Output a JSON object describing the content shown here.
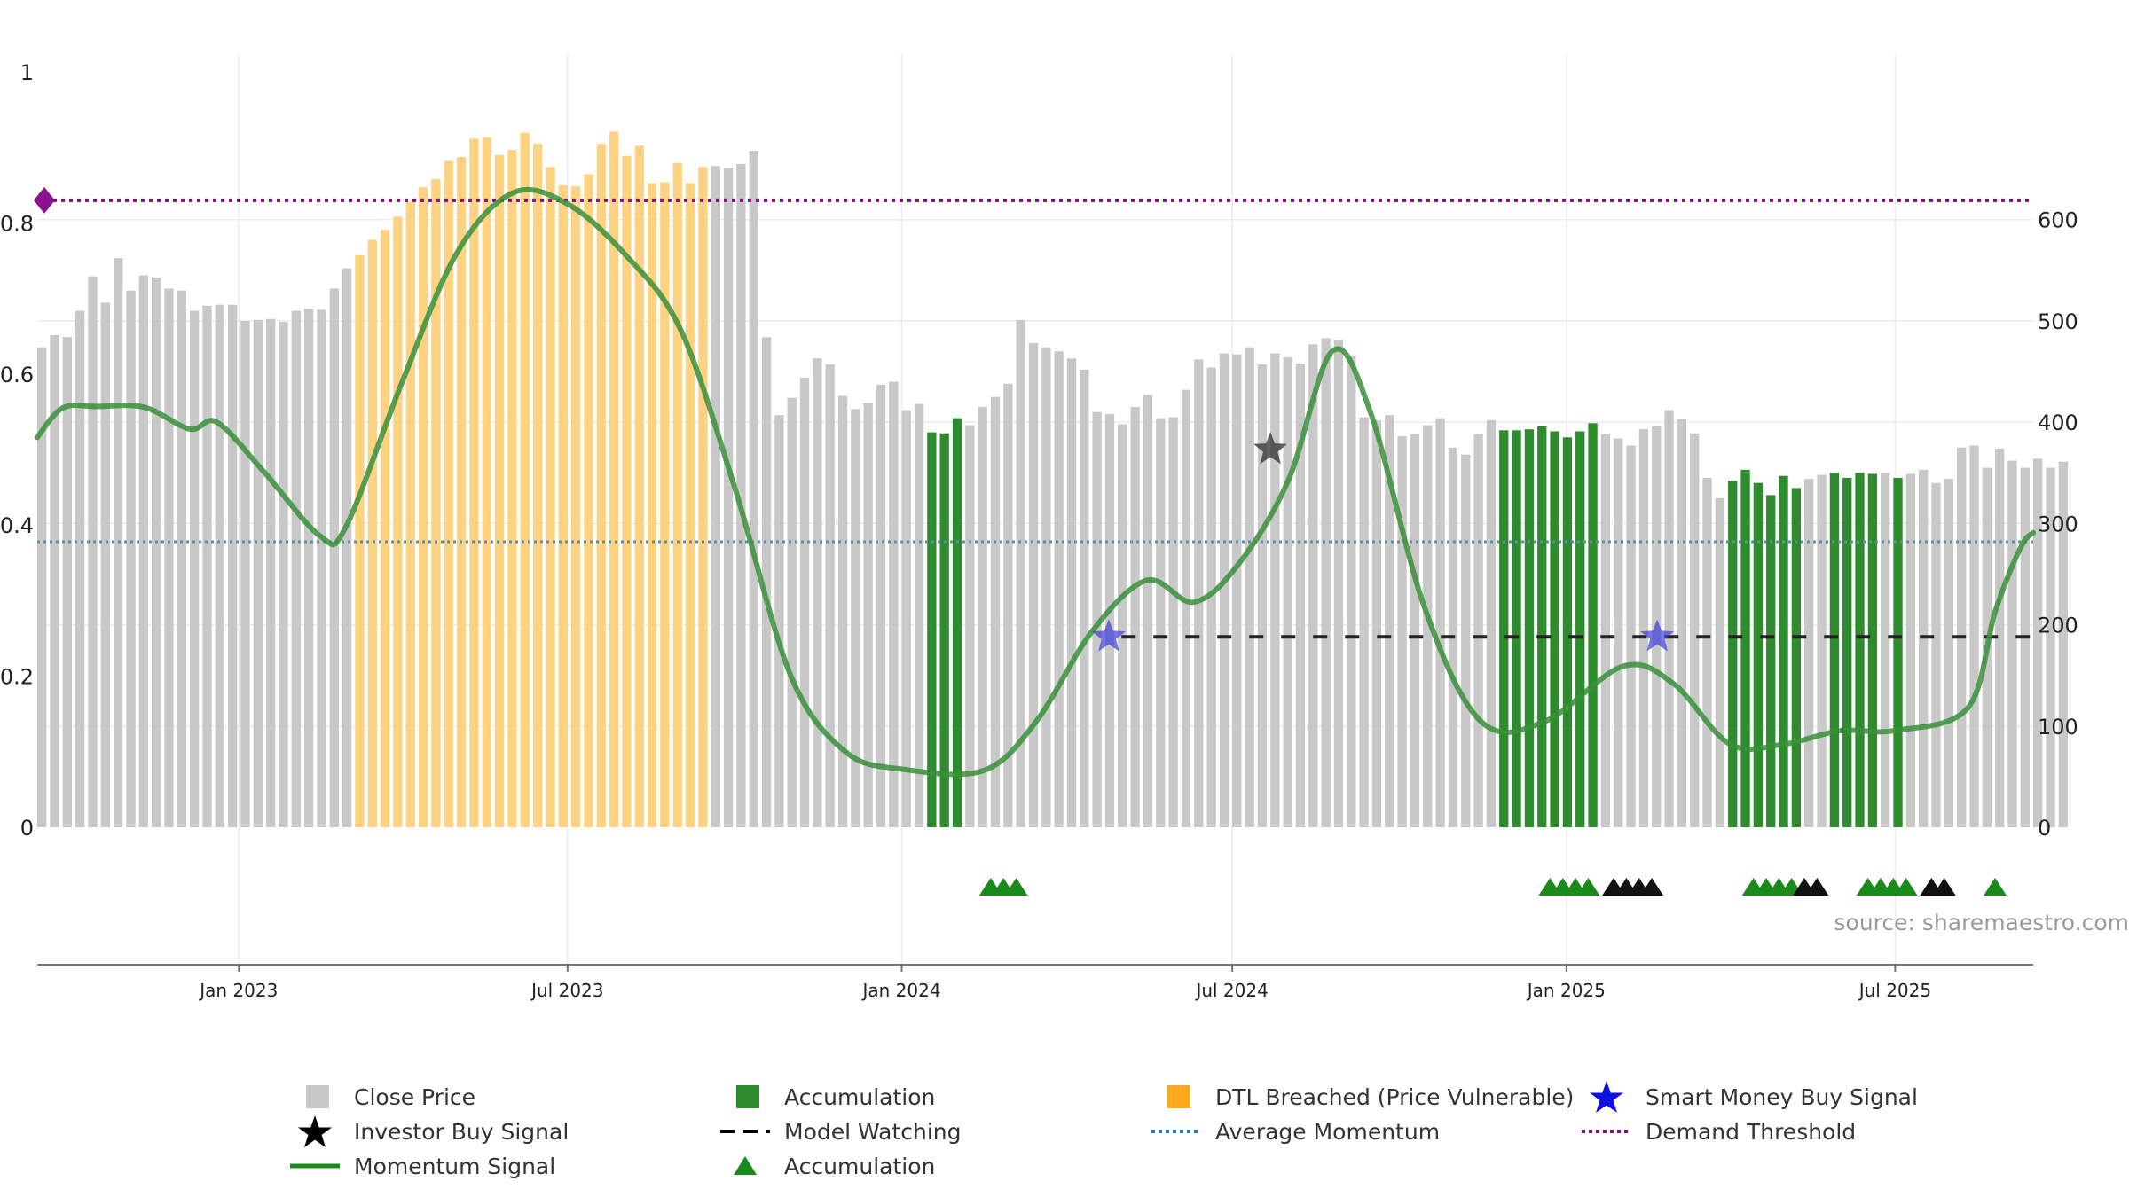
{
  "source_label": "source: sharemaestro.com",
  "colors": {
    "close_price": "#c8c8c8",
    "accumulation": "#2e8b2e",
    "dtl_breached": "#fdd283",
    "momentum": "#3a8f3a",
    "momentum_strong": "#1a8a1a",
    "average_momentum": "#5b8fa8",
    "demand_threshold": "#7b0f7b",
    "model_watching": "#222222",
    "smart_money": "#3a3ad8",
    "investor_buy": "#3a3a3a",
    "triangle_green": "#1a8a1a",
    "triangle_black": "#111111"
  },
  "legend": [
    {
      "label": "Close Price",
      "icon": "grey-square-icon"
    },
    {
      "label": "Accumulation",
      "icon": "green-square-icon"
    },
    {
      "label": "DTL Breached (Price Vulnerable)",
      "icon": "orange-square-icon"
    },
    {
      "label": "Smart Money Buy Signal",
      "icon": "blue-star-icon"
    },
    {
      "label": "Investor Buy Signal",
      "icon": "black-star-icon"
    },
    {
      "label": "Model Watching",
      "icon": "dashed-line-icon"
    },
    {
      "label": "Average Momentum",
      "icon": "dotted-blue-line-icon"
    },
    {
      "label": "Demand Threshold",
      "icon": "dotted-purple-line-icon"
    },
    {
      "label": "Momentum Signal",
      "icon": "green-line-icon"
    },
    {
      "label": "Accumulation",
      "icon": "green-triangle-icon"
    }
  ],
  "chart_data": {
    "type": "bar",
    "left_axis": {
      "ylim": [
        0,
        1
      ],
      "ticks": [
        0,
        0.2,
        0.4,
        0.6,
        0.8,
        1
      ],
      "tick_labels": [
        "0",
        "0.2",
        "0.4",
        "0.6",
        "0.8",
        "1"
      ]
    },
    "right_axis": {
      "ylim": [
        0,
        746
      ],
      "ticks": [
        0,
        100,
        200,
        300,
        400,
        500,
        600
      ],
      "tick_labels": [
        "0",
        "100",
        "200",
        "300",
        "400",
        "500",
        "600"
      ]
    },
    "x_axis": {
      "start_date": "2022-09-12",
      "end_date": "2025-09-15",
      "tick_dates": [
        "2023-01-01",
        "2023-07-01",
        "2024-01-01",
        "2024-07-01",
        "2025-01-01",
        "2025-07-01"
      ],
      "tick_labels": [
        "Jan 2023",
        "Jul 2023",
        "Jan 2024",
        "Jul 2024",
        "Jan 2025",
        "Jul 2025"
      ]
    },
    "close_price": {
      "name": "Close Price",
      "start_date": "2022-09-12",
      "interval_days": 7,
      "values": [
        474,
        486,
        484,
        510,
        544,
        518,
        562,
        530,
        545,
        543,
        532,
        530,
        510,
        515,
        516,
        516,
        500,
        501,
        502,
        499,
        510,
        512,
        511,
        532,
        552,
        565,
        580,
        590,
        603,
        618,
        632,
        640,
        658,
        662,
        680,
        681,
        664,
        669,
        686,
        675,
        652,
        634,
        633,
        645,
        675,
        687,
        663,
        673,
        636,
        637,
        656,
        636,
        652,
        653,
        651,
        655,
        668,
        484,
        407,
        424,
        444,
        463,
        457,
        426,
        413,
        419,
        437,
        440,
        412,
        418,
        390,
        389,
        404,
        397,
        415,
        425,
        438,
        501,
        478,
        474,
        470,
        463,
        452,
        410,
        408,
        398,
        415,
        427,
        404,
        405,
        432,
        462,
        454,
        468,
        467,
        474,
        457,
        468,
        464,
        458,
        477,
        483,
        481,
        466,
        405,
        402,
        407,
        386,
        388,
        397,
        404,
        375,
        368,
        388,
        402,
        392,
        392,
        393,
        396,
        391,
        385,
        391,
        399,
        388,
        384,
        377,
        393,
        396,
        412,
        403,
        389,
        345,
        325,
        342,
        353,
        340,
        328,
        347,
        335,
        344,
        348,
        350,
        345,
        350,
        349,
        350,
        345,
        349,
        353,
        340,
        344,
        375,
        377,
        355,
        374,
        362,
        355,
        364,
        355,
        361
      ]
    },
    "bar_categories": {
      "close": "Close Price",
      "dtl": "DTL Breached (Price Vulnerable)",
      "accumulation": "Accumulation",
      "ranges": [
        {
          "category": "dtl",
          "from_index": 25,
          "to_index": 52
        },
        {
          "category": "accumulation",
          "from_index": 70,
          "to_index": 72
        },
        {
          "category": "accumulation",
          "from_index": 115,
          "to_index": 122
        },
        {
          "category": "accumulation",
          "from_index": 133,
          "to_index": 138
        },
        {
          "category": "accumulation",
          "from_index": 141,
          "to_index": 144
        },
        {
          "category": "accumulation",
          "from_index": 146,
          "to_index": 146
        }
      ]
    },
    "momentum_signal": {
      "name": "Momentum Signal",
      "points": [
        [
          "2022-09-12",
          0.516
        ],
        [
          "2022-09-26",
          0.555
        ],
        [
          "2022-10-15",
          0.557
        ],
        [
          "2022-11-10",
          0.556
        ],
        [
          "2022-12-05",
          0.527
        ],
        [
          "2022-12-20",
          0.536
        ],
        [
          "2023-01-15",
          0.47
        ],
        [
          "2023-02-15",
          0.385
        ],
        [
          "2023-03-01",
          0.398
        ],
        [
          "2023-04-01",
          0.59
        ],
        [
          "2023-05-01",
          0.76
        ],
        [
          "2023-06-01",
          0.84
        ],
        [
          "2023-07-01",
          0.825
        ],
        [
          "2023-08-01",
          0.76
        ],
        [
          "2023-09-01",
          0.66
        ],
        [
          "2023-10-01",
          0.45
        ],
        [
          "2023-11-01",
          0.2
        ],
        [
          "2023-12-01",
          0.1
        ],
        [
          "2024-01-01",
          0.077
        ],
        [
          "2024-02-15",
          0.075
        ],
        [
          "2024-03-15",
          0.14
        ],
        [
          "2024-04-15",
          0.26
        ],
        [
          "2024-05-15",
          0.327
        ],
        [
          "2024-06-10",
          0.298
        ],
        [
          "2024-07-05",
          0.35
        ],
        [
          "2024-08-01",
          0.46
        ],
        [
          "2024-08-25",
          0.63
        ],
        [
          "2024-09-15",
          0.55
        ],
        [
          "2024-10-15",
          0.29
        ],
        [
          "2024-11-15",
          0.14
        ],
        [
          "2024-12-20",
          0.14
        ],
        [
          "2025-02-01",
          0.213
        ],
        [
          "2025-03-01",
          0.19
        ],
        [
          "2025-04-01",
          0.11
        ],
        [
          "2025-05-01",
          0.11
        ],
        [
          "2025-06-01",
          0.128
        ],
        [
          "2025-07-01",
          0.128
        ],
        [
          "2025-08-10",
          0.158
        ],
        [
          "2025-08-25",
          0.285
        ],
        [
          "2025-09-08",
          0.37
        ],
        [
          "2025-09-15",
          0.39
        ]
      ]
    },
    "average_momentum": {
      "name": "Average Momentum",
      "value": 0.378
    },
    "demand_threshold": {
      "name": "Demand Threshold",
      "value": 0.83
    },
    "model_watching": {
      "name": "Model Watching",
      "value": 0.252,
      "from_date": "2024-05-01",
      "to_date": "2025-09-15"
    },
    "smart_money_buy_signals": {
      "name": "Smart Money Buy Signal",
      "points": [
        [
          "2024-04-24",
          0.252
        ],
        [
          "2025-02-20",
          0.252
        ]
      ]
    },
    "investor_buy_signals": {
      "name": "Investor Buy Signal",
      "points": [
        [
          "2024-07-22",
          0.5
        ]
      ]
    },
    "accumulation_triangles": {
      "name": "Accumulation",
      "green_dates": [
        "2024-02-19",
        "2024-02-26",
        "2024-03-04",
        "2024-12-23",
        "2024-12-30",
        "2025-01-06",
        "2025-01-13",
        "2025-04-14",
        "2025-04-21",
        "2025-04-28",
        "2025-05-05",
        "2025-06-16",
        "2025-06-23",
        "2025-06-30",
        "2025-07-07",
        "2025-08-25"
      ],
      "black_dates": [
        "2025-01-27",
        "2025-02-03",
        "2025-02-10",
        "2025-02-17",
        "2025-05-12",
        "2025-05-19",
        "2025-07-21",
        "2025-07-28"
      ]
    }
  }
}
